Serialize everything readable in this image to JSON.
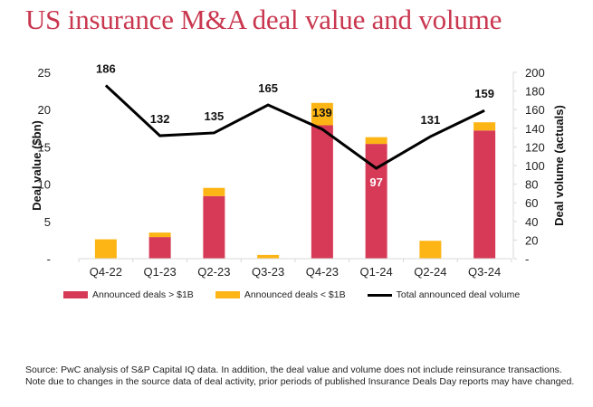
{
  "title": "US insurance M&A deal value and volume",
  "colors": {
    "title": "#c9374f",
    "large_deals": "#d63a56",
    "small_deals": "#fdb515",
    "volume_line": "#000000"
  },
  "chart_data": {
    "type": "bar",
    "subtype": "stacked-bar-with-line",
    "title": "US insurance M&A deal value and volume",
    "categories": [
      "Q4-22",
      "Q1-23",
      "Q2-23",
      "Q3-23",
      "Q4-23",
      "Q1-24",
      "Q2-24",
      "Q3-24"
    ],
    "series": [
      {
        "name": "Announced deals > $1B",
        "type": "bar",
        "axis": "left",
        "values": [
          0,
          2.9,
          8.4,
          0,
          17.9,
          15.4,
          0,
          17.2
        ]
      },
      {
        "name": "Announced deals < $1B",
        "type": "bar",
        "axis": "left",
        "values": [
          2.6,
          0.6,
          1.1,
          0.5,
          3.0,
          0.9,
          2.4,
          1.1
        ]
      },
      {
        "name": "Total announced deal volume",
        "type": "line",
        "axis": "right",
        "values": [
          186,
          132,
          135,
          165,
          139,
          97,
          131,
          159
        ]
      }
    ],
    "data_labels": [
      "186",
      "132",
      "135",
      "165",
      "139",
      "97",
      "131",
      "159"
    ],
    "ylabel": "Deal value ($bn)",
    "y2label": "Deal volume (actuals)",
    "ylim": [
      0,
      25
    ],
    "y2lim": [
      0,
      200
    ],
    "yticks": [
      "-",
      "5",
      "10",
      "15",
      "20",
      "25"
    ],
    "y2ticks": [
      "-",
      "20",
      "40",
      "60",
      "80",
      "100",
      "120",
      "140",
      "160",
      "180",
      "200"
    ],
    "grid": false,
    "legend_position": "bottom"
  },
  "legend": [
    {
      "label": "Announced deals > $1B"
    },
    {
      "label": "Announced deals < $1B"
    },
    {
      "label": "Total announced deal volume"
    }
  ],
  "source": "Source: PwC analysis of S&P Capital IQ data. In addition, the deal value and volume does not include reinsurance transactions. Note due to changes in the source data of deal activity, prior periods of published Insurance Deals Day reports may have changed."
}
